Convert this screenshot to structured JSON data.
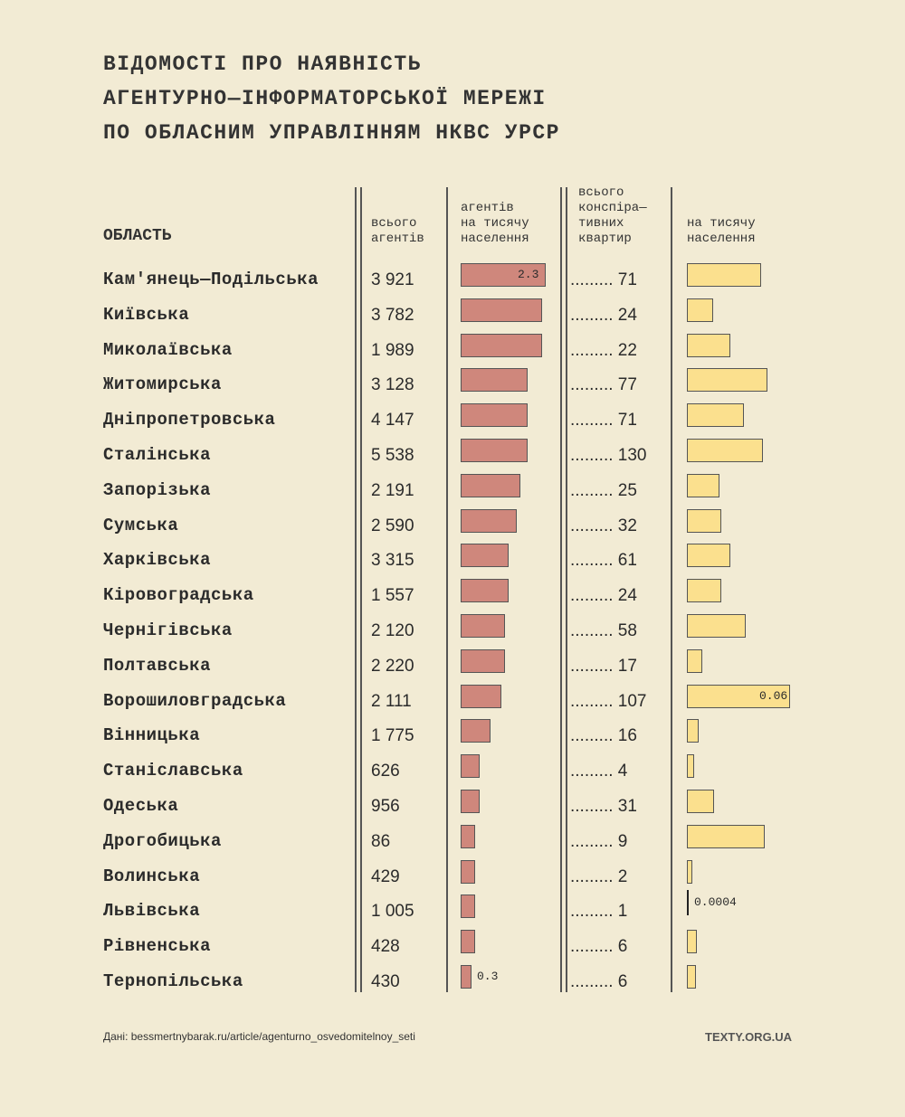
{
  "title": [
    "ВІДОМОСТІ ПРО НАЯВНІСТЬ",
    "АГЕНТУРНО—ІНФОРМАТОРСЬКОЇ МЕРЕЖІ",
    "ПО ОБЛАСНИМ УПРАВЛІННЯМ НКВС УРСР"
  ],
  "headers": {
    "region": "ОБЛАСТЬ",
    "total": "всього\nагентів",
    "per_thousand": "агентів\nна тисячу\nнаселення",
    "apartments": "всього\nконспіра—\nтивних\nквартир",
    "apt_per_thousand": "на тисячу\nнаселення"
  },
  "dots": ".........",
  "footer": {
    "source": "Дані: bessmertnybarak.ru/article/agenturno_osvedomitelnoy_seti",
    "brand": "TEXTY.ORG.UA"
  },
  "colors": {
    "agents_bar": "#cf877c",
    "apartments_bar": "#fbe08e",
    "background": "#f2ebd4"
  },
  "chart_data": {
    "type": "table",
    "title": "Відомості про наявність агентурно-інформаторської мережі по обласним управлінням НКВС УРСР",
    "regions": [
      "Кам'янець—Подільська",
      "Київська",
      "Миколаївська",
      "Житомирська",
      "Дніпропетровська",
      "Сталінська",
      "Запорізька",
      "Сумська",
      "Харківська",
      "Кіровоградська",
      "Чернігівська",
      "Полтавська",
      "Ворошиловградська",
      "Вінницька",
      "Станіславська",
      "Одеська",
      "Дрогобицька",
      "Волинська",
      "Львівська",
      "Рівненська",
      "Тернопільська"
    ],
    "total_agents": [
      "3 921",
      "3 782",
      "1 989",
      "3 128",
      "4 147",
      "5 538",
      "2 191",
      "2 590",
      "3 315",
      "1 557",
      "2 120",
      "2 220",
      "2 111",
      "1 775",
      "626",
      "956",
      "86",
      "429",
      "1 005",
      "428",
      "430"
    ],
    "agents_per_thousand": [
      2.3,
      2.2,
      2.2,
      1.8,
      1.8,
      1.8,
      1.6,
      1.5,
      1.3,
      1.3,
      1.2,
      1.2,
      1.1,
      0.8,
      0.5,
      0.5,
      0.4,
      0.4,
      0.4,
      0.4,
      0.3
    ],
    "apartments": [
      "71",
      "24",
      "22",
      "77",
      "71",
      "130",
      "25",
      "32",
      "61",
      "24",
      "58",
      "17",
      "107",
      "16",
      "4",
      "31",
      "9",
      "2",
      "1",
      "6",
      "6"
    ],
    "apartments_per_thousand": [
      0.043,
      0.015,
      0.025,
      0.047,
      0.033,
      0.044,
      0.019,
      0.02,
      0.025,
      0.02,
      0.034,
      0.009,
      0.06,
      0.007,
      0.004,
      0.016,
      0.045,
      0.003,
      0.0004,
      0.006,
      0.005
    ],
    "labels": {
      "agents_max": "2.3",
      "agents_min": "0.3",
      "apt_max": "0.06",
      "apt_min": "0.0004"
    }
  }
}
